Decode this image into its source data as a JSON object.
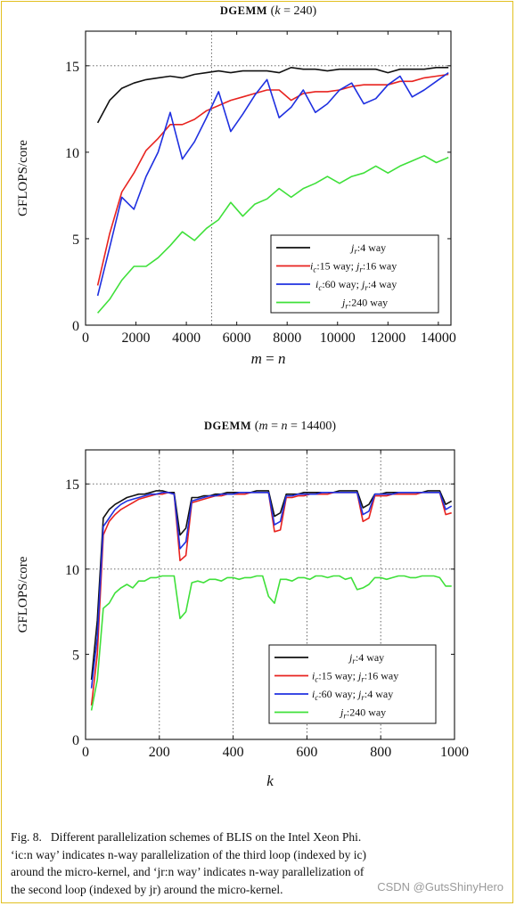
{
  "chart_data": [
    {
      "type": "line",
      "title": "DGEMM (k = 240)",
      "xlabel": "m = n",
      "ylabel": "GFLOPS/core",
      "xlim": [
        0,
        14500
      ],
      "ylim": [
        0,
        17
      ],
      "xticks": [
        0,
        2000,
        4000,
        6000,
        8000,
        10000,
        12000,
        14000
      ],
      "yticks": [
        0,
        5,
        10,
        15
      ],
      "dotted_grid_x": [
        5000
      ],
      "dotted_grid_y": [
        15
      ],
      "legend_position": "bottom-right",
      "series": [
        {
          "name": "jr:4 way",
          "color": "#111111",
          "x": [
            480,
            960,
            1440,
            1920,
            2400,
            2880,
            3360,
            3840,
            4320,
            4800,
            5280,
            5760,
            6240,
            6720,
            7200,
            7680,
            8160,
            8640,
            9120,
            9600,
            10080,
            10560,
            11040,
            11520,
            12000,
            12480,
            12960,
            13440,
            13920,
            14400
          ],
          "y": [
            11.7,
            13.0,
            13.7,
            14.0,
            14.2,
            14.3,
            14.4,
            14.3,
            14.5,
            14.6,
            14.7,
            14.6,
            14.7,
            14.7,
            14.7,
            14.6,
            14.9,
            14.8,
            14.8,
            14.7,
            14.8,
            14.8,
            14.8,
            14.8,
            14.6,
            14.8,
            14.8,
            14.8,
            14.9,
            14.9
          ]
        },
        {
          "name": "ic:15 way; jr:16 way",
          "color": "#e8231f",
          "x": [
            480,
            960,
            1440,
            1920,
            2400,
            2880,
            3360,
            3840,
            4320,
            4800,
            5280,
            5760,
            6240,
            6720,
            7200,
            7680,
            8160,
            8640,
            9120,
            9600,
            10080,
            10560,
            11040,
            11520,
            12000,
            12480,
            12960,
            13440,
            13920,
            14400
          ],
          "y": [
            2.3,
            5.3,
            7.7,
            8.8,
            10.1,
            10.8,
            11.6,
            11.6,
            11.9,
            12.4,
            12.7,
            13.0,
            13.2,
            13.4,
            13.6,
            13.6,
            13.0,
            13.4,
            13.5,
            13.5,
            13.6,
            13.8,
            13.9,
            13.9,
            13.9,
            14.1,
            14.1,
            14.3,
            14.4,
            14.5
          ]
        },
        {
          "name": "ic:60 way; jr:4 way",
          "color": "#1f30e0",
          "x": [
            480,
            960,
            1440,
            1920,
            2400,
            2880,
            3360,
            3840,
            4320,
            4800,
            5280,
            5760,
            6240,
            6720,
            7200,
            7680,
            8160,
            8640,
            9120,
            9600,
            10080,
            10560,
            11040,
            11520,
            12000,
            12480,
            12960,
            13440,
            13920,
            14400
          ],
          "y": [
            1.7,
            4.5,
            7.4,
            6.7,
            8.6,
            10.0,
            12.3,
            9.6,
            10.6,
            12.0,
            13.5,
            11.2,
            12.2,
            13.3,
            14.2,
            12.0,
            12.6,
            13.6,
            12.3,
            12.8,
            13.6,
            14.0,
            12.8,
            13.1,
            13.9,
            14.4,
            13.2,
            13.6,
            14.1,
            14.6
          ]
        },
        {
          "name": "jr:240 way",
          "color": "#3fe03a",
          "x": [
            480,
            960,
            1440,
            1920,
            2400,
            2880,
            3360,
            3840,
            4320,
            4800,
            5280,
            5760,
            6240,
            6720,
            7200,
            7680,
            8160,
            8640,
            9120,
            9600,
            10080,
            10560,
            11040,
            11520,
            12000,
            12480,
            12960,
            13440,
            13920,
            14400
          ],
          "y": [
            0.7,
            1.5,
            2.6,
            3.4,
            3.4,
            3.9,
            4.6,
            5.4,
            4.9,
            5.6,
            6.1,
            7.1,
            6.3,
            7.0,
            7.3,
            7.9,
            7.4,
            7.9,
            8.2,
            8.6,
            8.2,
            8.6,
            8.8,
            9.2,
            8.8,
            9.2,
            9.5,
            9.8,
            9.4,
            9.7
          ]
        }
      ]
    },
    {
      "type": "line",
      "title": "DGEMM (m = n = 14400)",
      "xlabel": "k",
      "ylabel": "GFLOPS/core",
      "xlim": [
        0,
        1000
      ],
      "ylim": [
        0,
        17
      ],
      "xticks": [
        0,
        200,
        400,
        600,
        800,
        1000
      ],
      "yticks": [
        0,
        5,
        10,
        15
      ],
      "dotted_grid_x": [
        200,
        400,
        600,
        800
      ],
      "dotted_grid_y": [
        15,
        10
      ],
      "legend_position": "bottom-right",
      "series": [
        {
          "name": "jr:4 way",
          "color": "#111111",
          "x": [
            16,
            32,
            48,
            64,
            80,
            96,
            112,
            128,
            144,
            160,
            176,
            192,
            208,
            224,
            240,
            256,
            272,
            288,
            304,
            320,
            336,
            352,
            368,
            384,
            400,
            416,
            432,
            448,
            464,
            480,
            496,
            512,
            528,
            544,
            560,
            576,
            592,
            608,
            624,
            640,
            656,
            672,
            688,
            704,
            720,
            736,
            752,
            768,
            784,
            800,
            816,
            832,
            848,
            864,
            880,
            896,
            912,
            928,
            944,
            960,
            976,
            992
          ],
          "y": [
            3.5,
            7.0,
            13.0,
            13.5,
            13.8,
            14.0,
            14.2,
            14.3,
            14.4,
            14.4,
            14.5,
            14.6,
            14.6,
            14.5,
            14.5,
            12.0,
            12.4,
            14.2,
            14.2,
            14.3,
            14.3,
            14.4,
            14.4,
            14.5,
            14.5,
            14.5,
            14.5,
            14.5,
            14.6,
            14.6,
            14.6,
            13.1,
            13.3,
            14.4,
            14.4,
            14.4,
            14.5,
            14.5,
            14.5,
            14.5,
            14.5,
            14.5,
            14.6,
            14.6,
            14.6,
            14.6,
            13.6,
            13.8,
            14.4,
            14.4,
            14.5,
            14.5,
            14.5,
            14.5,
            14.5,
            14.5,
            14.5,
            14.6,
            14.6,
            14.6,
            13.8,
            14.0
          ]
        },
        {
          "name": "ic:15 way; jr:16 way",
          "color": "#e8231f",
          "x": [
            16,
            32,
            48,
            64,
            80,
            96,
            112,
            128,
            144,
            160,
            176,
            192,
            208,
            224,
            240,
            256,
            272,
            288,
            304,
            320,
            336,
            352,
            368,
            384,
            400,
            416,
            432,
            448,
            464,
            480,
            496,
            512,
            528,
            544,
            560,
            576,
            592,
            608,
            624,
            640,
            656,
            672,
            688,
            704,
            720,
            736,
            752,
            768,
            784,
            800,
            816,
            832,
            848,
            864,
            880,
            896,
            912,
            928,
            944,
            960,
            976,
            992
          ],
          "y": [
            2.0,
            5.0,
            12.0,
            12.8,
            13.2,
            13.5,
            13.7,
            13.9,
            14.1,
            14.2,
            14.3,
            14.4,
            14.4,
            14.5,
            14.4,
            10.5,
            10.8,
            13.9,
            14.0,
            14.1,
            14.2,
            14.3,
            14.3,
            14.4,
            14.4,
            14.4,
            14.4,
            14.5,
            14.5,
            14.5,
            14.5,
            12.2,
            12.3,
            14.2,
            14.2,
            14.3,
            14.3,
            14.4,
            14.4,
            14.4,
            14.4,
            14.5,
            14.5,
            14.5,
            14.5,
            14.5,
            12.8,
            13.0,
            14.3,
            14.3,
            14.3,
            14.4,
            14.4,
            14.4,
            14.4,
            14.4,
            14.5,
            14.5,
            14.5,
            14.5,
            13.2,
            13.3
          ]
        },
        {
          "name": "ic:60 way; jr:4 way",
          "color": "#1f30e0",
          "x": [
            16,
            32,
            48,
            64,
            80,
            96,
            112,
            128,
            144,
            160,
            176,
            192,
            208,
            224,
            240,
            256,
            272,
            288,
            304,
            320,
            336,
            352,
            368,
            384,
            400,
            416,
            432,
            448,
            464,
            480,
            496,
            512,
            528,
            544,
            560,
            576,
            592,
            608,
            624,
            640,
            656,
            672,
            688,
            704,
            720,
            736,
            752,
            768,
            784,
            800,
            816,
            832,
            848,
            864,
            880,
            896,
            912,
            928,
            944,
            960,
            976,
            992
          ],
          "y": [
            3.0,
            6.0,
            12.5,
            13.0,
            13.5,
            13.8,
            14.0,
            14.1,
            14.2,
            14.3,
            14.4,
            14.4,
            14.5,
            14.5,
            14.4,
            11.2,
            11.6,
            14.0,
            14.1,
            14.2,
            14.3,
            14.3,
            14.4,
            14.4,
            14.4,
            14.5,
            14.5,
            14.5,
            14.5,
            14.5,
            14.5,
            12.6,
            12.8,
            14.3,
            14.3,
            14.4,
            14.4,
            14.4,
            14.4,
            14.5,
            14.5,
            14.5,
            14.5,
            14.5,
            14.5,
            14.5,
            13.2,
            13.4,
            14.4,
            14.4,
            14.4,
            14.4,
            14.5,
            14.5,
            14.5,
            14.5,
            14.5,
            14.5,
            14.5,
            14.5,
            13.5,
            13.7
          ]
        },
        {
          "name": "jr:240 way",
          "color": "#3fe03a",
          "x": [
            16,
            32,
            48,
            64,
            80,
            96,
            112,
            128,
            144,
            160,
            176,
            192,
            208,
            224,
            240,
            256,
            272,
            288,
            304,
            320,
            336,
            352,
            368,
            384,
            400,
            416,
            432,
            448,
            464,
            480,
            496,
            512,
            528,
            544,
            560,
            576,
            592,
            608,
            624,
            640,
            656,
            672,
            688,
            704,
            720,
            736,
            752,
            768,
            784,
            800,
            816,
            832,
            848,
            864,
            880,
            896,
            912,
            928,
            944,
            960,
            976,
            992
          ],
          "y": [
            1.7,
            3.5,
            7.7,
            8.0,
            8.6,
            8.9,
            9.1,
            8.9,
            9.3,
            9.3,
            9.5,
            9.5,
            9.6,
            9.6,
            9.6,
            7.1,
            7.5,
            9.2,
            9.3,
            9.2,
            9.4,
            9.4,
            9.3,
            9.5,
            9.5,
            9.4,
            9.5,
            9.5,
            9.6,
            9.6,
            8.4,
            8.0,
            9.4,
            9.4,
            9.3,
            9.5,
            9.5,
            9.4,
            9.6,
            9.6,
            9.5,
            9.6,
            9.6,
            9.4,
            9.5,
            8.8,
            8.9,
            9.1,
            9.5,
            9.5,
            9.4,
            9.5,
            9.6,
            9.6,
            9.5,
            9.5,
            9.6,
            9.6,
            9.6,
            9.5,
            9.0,
            9.0
          ]
        }
      ]
    }
  ],
  "charts_display": [
    {
      "title_prefix": "DGEMM",
      "title_paren_open": "(",
      "title_var": "k",
      "title_eq": " = 240)",
      "xlabel_var_a": "m",
      "xlabel_eq": " = ",
      "xlabel_var_b": "n",
      "ylabel": "GFLOPS/core",
      "x_tick_labels": [
        "0",
        "2000",
        "4000",
        "6000",
        "8000",
        "10000",
        "12000",
        "14000"
      ],
      "y_tick_labels": [
        "0",
        "5",
        "10",
        "15"
      ],
      "legend": [
        {
          "var": "j",
          "sub": "r",
          "text": ":4 way"
        },
        {
          "var": "i",
          "sub": "c",
          "text": ":15 way; ",
          "var2": "j",
          "sub2": "r",
          "text2": ":16 way"
        },
        {
          "var": "i",
          "sub": "c",
          "text": ":60 way; ",
          "var2": "j",
          "sub2": "r",
          "text2": ":4 way"
        },
        {
          "var": "j",
          "sub": "r",
          "text": ":240 way"
        }
      ]
    },
    {
      "title_prefix": "DGEMM",
      "title_paren_open": "(",
      "title_var": "m",
      "title_eq": " = ",
      "title_var2": "n",
      "title_eq2": " = 14400)",
      "xlabel_var_a": "k",
      "ylabel": "GFLOPS/core",
      "x_tick_labels": [
        "0",
        "200",
        "400",
        "600",
        "800",
        "1000"
      ],
      "y_tick_labels": [
        "0",
        "5",
        "10",
        "15"
      ],
      "legend": [
        {
          "var": "j",
          "sub": "r",
          "text": ":4 way"
        },
        {
          "var": "i",
          "sub": "c",
          "text": ":15 way; ",
          "var2": "j",
          "sub2": "r",
          "text2": ":16 way"
        },
        {
          "var": "i",
          "sub": "c",
          "text": ":60 way; ",
          "var2": "j",
          "sub2": "r",
          "text2": ":4 way"
        },
        {
          "var": "j",
          "sub": "r",
          "text": ":240 way"
        }
      ]
    }
  ],
  "caption": {
    "fig_label": "Fig. 8.",
    "line1": "Different parallelization schemes of BLIS on the Intel Xeon Phi.",
    "line2": "‘ic:n way’ indicates n-way parallelization of the third loop (indexed by ic)",
    "line3": "around the micro-kernel, and ‘jr:n way’ indicates n-way parallelization of",
    "line4": "the second loop (indexed by jr) around the micro-kernel."
  },
  "watermark": "CSDN @GutsShinyHero"
}
